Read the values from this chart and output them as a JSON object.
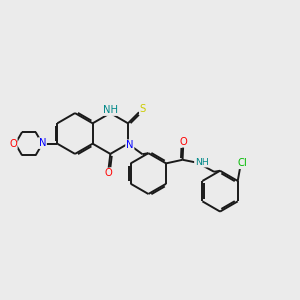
{
  "bg": "#ebebeb",
  "atom_colors": {
    "N": "#0000ff",
    "O": "#ff0000",
    "S": "#cccc00",
    "Cl": "#00bb00",
    "NH": "#008888"
  },
  "bond_color": "#1a1a1a",
  "bond_lw": 1.4,
  "dbo": 0.055,
  "fs": 7.2
}
